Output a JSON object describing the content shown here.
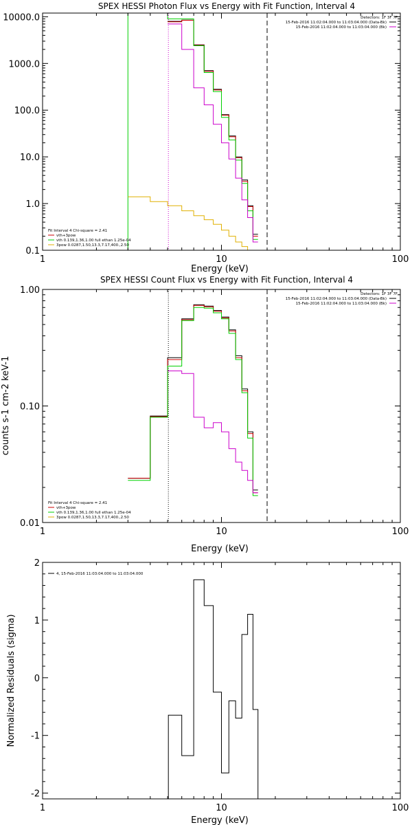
{
  "chart_data": [
    {
      "type": "line",
      "title": "SPEX HESSI Photon Flux vs Energy with Fit Function, Interval 4",
      "xlabel": "Energy (keV)",
      "ylabel": "",
      "xscale": "log",
      "yscale": "log",
      "xlim": [
        1,
        100
      ],
      "ylim": [
        0.1,
        12000
      ],
      "xticks": [
        {
          "v": 1,
          "label": "1"
        },
        {
          "v": 10,
          "label": "10"
        },
        {
          "v": 100,
          "label": "100"
        }
      ],
      "yticks": [
        {
          "v": 10000,
          "label": "10000.0"
        },
        {
          "v": 1000,
          "label": "1000.0"
        },
        {
          "v": 100,
          "label": "100.0"
        },
        {
          "v": 10,
          "label": "10.0"
        },
        {
          "v": 1,
          "label": "1.0"
        },
        {
          "v": 0.1,
          "label": "0.1"
        }
      ],
      "vlines": [
        {
          "x": 3.0,
          "color": "#00d000",
          "style": "solid"
        },
        {
          "x": 5.05,
          "color": "#cc00cc",
          "style": "dotted"
        },
        {
          "x": 18.0,
          "color": "#000000",
          "style": "dashed"
        }
      ],
      "info_lines": [
        "Detectors: 1F 3F 7F",
        "15-Feb-2016 11:02:04.000 to 11:03:04.000 (Data-Bk)",
        "15-Feb-2016 11:02:04.000 to 11:03:04.000 (Bk)"
      ],
      "info_colors": [
        "",
        "#000000",
        "#cc00cc"
      ],
      "legend_lines": [
        "Fit Interval  4   Chi-square = 2.41",
        "vth+3pow",
        "vth 0.139,1.36,1.00  full ethan 1.25e-04",
        "3pow 0.0287,1.50,13.3,7.17,400.,2.50"
      ],
      "legend_colors": [
        "",
        "#cc0000",
        "#00d000",
        "#e0b000"
      ],
      "edges": [
        3.0,
        4.0,
        5.0,
        6.0,
        7.0,
        8.0,
        9.0,
        10.0,
        11.0,
        12.0,
        13.0,
        14.0,
        15.0,
        16.0,
        17.0,
        18.0
      ],
      "series": [
        {
          "color": "#000000",
          "values": [
            null,
            null,
            8000,
            8500,
            2500,
            700,
            280,
            80,
            28,
            10,
            3.2,
            0.9,
            0.22,
            null,
            null
          ]
        },
        {
          "color": "#cc0000",
          "values": [
            null,
            null,
            7800,
            8400,
            2450,
            680,
            270,
            78,
            27,
            9.6,
            3.0,
            0.86,
            0.2,
            null,
            null
          ]
        },
        {
          "color": "#00d000",
          "values": [
            12000,
            12000,
            9000,
            9000,
            2400,
            640,
            250,
            70,
            23,
            8.5,
            2.7,
            0.7,
            0.17,
            null,
            null
          ]
        },
        {
          "color": "#cc00cc",
          "values": [
            null,
            null,
            7000,
            2000,
            300,
            130,
            50,
            20,
            9,
            3.5,
            1.2,
            0.5,
            0.15,
            null,
            null
          ]
        },
        {
          "color": "#e0b000",
          "values": [
            1.4,
            1.1,
            0.9,
            0.7,
            0.55,
            0.45,
            0.36,
            0.27,
            0.2,
            0.15,
            0.12,
            0.1,
            null,
            null,
            null
          ]
        }
      ]
    },
    {
      "type": "line",
      "title": "SPEX HESSI Count Flux vs Energy with Fit Function, Interval 4",
      "xlabel": "Energy (keV)",
      "ylabel": "counts s-1 cm-2 keV-1",
      "xscale": "log",
      "yscale": "log",
      "xlim": [
        1,
        100
      ],
      "ylim": [
        0.01,
        1.0
      ],
      "xticks": [
        {
          "v": 1,
          "label": "1"
        },
        {
          "v": 10,
          "label": "10"
        },
        {
          "v": 100,
          "label": "100"
        }
      ],
      "yticks": [
        {
          "v": 1.0,
          "label": "1.00"
        },
        {
          "v": 0.1,
          "label": "0.10"
        },
        {
          "v": 0.01,
          "label": "0.01"
        }
      ],
      "vlines": [
        {
          "x": 5.05,
          "color": "#000000",
          "style": "dotted"
        },
        {
          "x": 18.0,
          "color": "#000000",
          "style": "dashed"
        }
      ],
      "info_lines": [
        "Detectors: 1F 3F 7F",
        "15-Feb-2016 11:02:04.000 to 11:03:04.000 (Data-Bk)",
        "15-Feb-2016 11:02:04.000 to 11:03:04.000 (Bk)"
      ],
      "info_colors": [
        "",
        "#000000",
        "#cc00cc"
      ],
      "legend_lines": [
        "Fit Interval  4   Chi-square = 2.41",
        "vth+3pow",
        "vth 0.139,1.36,1.00  full ethan 1.25e-04",
        "3pow 0.0287,1.50,13.3,7.17,400.,2.50"
      ],
      "legend_colors": [
        "",
        "#cc0000",
        "#00d000",
        "#e0b000"
      ],
      "edges": [
        3.0,
        4.0,
        5.0,
        6.0,
        7.0,
        8.0,
        9.0,
        10.0,
        11.0,
        12.0,
        13.0,
        14.0,
        15.0,
        16.0,
        17.0,
        18.0
      ],
      "series": [
        {
          "color": "#000000",
          "values": [
            0.024,
            0.082,
            0.26,
            0.56,
            0.74,
            0.72,
            0.66,
            0.58,
            0.45,
            0.27,
            0.14,
            0.06,
            0.019,
            null,
            null
          ]
        },
        {
          "color": "#cc0000",
          "values": [
            0.024,
            0.081,
            0.25,
            0.55,
            0.73,
            0.71,
            0.65,
            0.57,
            0.44,
            0.26,
            0.135,
            0.058,
            0.018,
            null,
            null
          ]
        },
        {
          "color": "#00d000",
          "values": [
            0.023,
            0.08,
            0.22,
            0.54,
            0.7,
            0.69,
            0.63,
            0.56,
            0.42,
            0.25,
            0.13,
            0.053,
            0.017,
            null,
            null
          ]
        },
        {
          "color": "#cc00cc",
          "values": [
            null,
            null,
            0.2,
            0.19,
            0.08,
            0.065,
            0.072,
            0.06,
            0.043,
            0.033,
            0.028,
            0.023,
            0.018,
            null,
            null
          ]
        }
      ]
    },
    {
      "type": "line",
      "title": "",
      "xlabel": "Energy (keV)",
      "ylabel": "Normalized Residuals (sigma)",
      "xscale": "log",
      "yscale": "linear",
      "xlim": [
        1,
        100
      ],
      "ylim": [
        -2.1,
        2.0
      ],
      "xticks": [
        {
          "v": 1,
          "label": "1"
        },
        {
          "v": 10,
          "label": "10"
        },
        {
          "v": 100,
          "label": "100"
        }
      ],
      "yticks": [
        {
          "v": 2,
          "label": "2"
        },
        {
          "v": 1,
          "label": "1"
        },
        {
          "v": 0,
          "label": "0"
        },
        {
          "v": -1,
          "label": "-1"
        },
        {
          "v": -2,
          "label": "-2"
        }
      ],
      "vlines": [],
      "info_lines": [],
      "info_colors": [],
      "legend_lines": [
        "4, 15-Feb-2016 11:03:04.000 to 11:03:04.000"
      ],
      "legend_colors": [
        "#000000"
      ],
      "legend_position": "top-left",
      "edges": [
        5.05,
        6.0,
        7.0,
        8.0,
        9.0,
        10.0,
        11.0,
        12.0,
        13.0,
        14.0,
        15.0,
        16.0,
        17.0,
        18.0
      ],
      "series": [
        {
          "color": "#000000",
          "drop_to_floor": true,
          "values": [
            -0.65,
            -1.35,
            1.7,
            1.25,
            -0.25,
            -1.65,
            -0.4,
            -0.7,
            0.75,
            1.1,
            -0.55,
            null,
            null
          ]
        }
      ]
    }
  ]
}
